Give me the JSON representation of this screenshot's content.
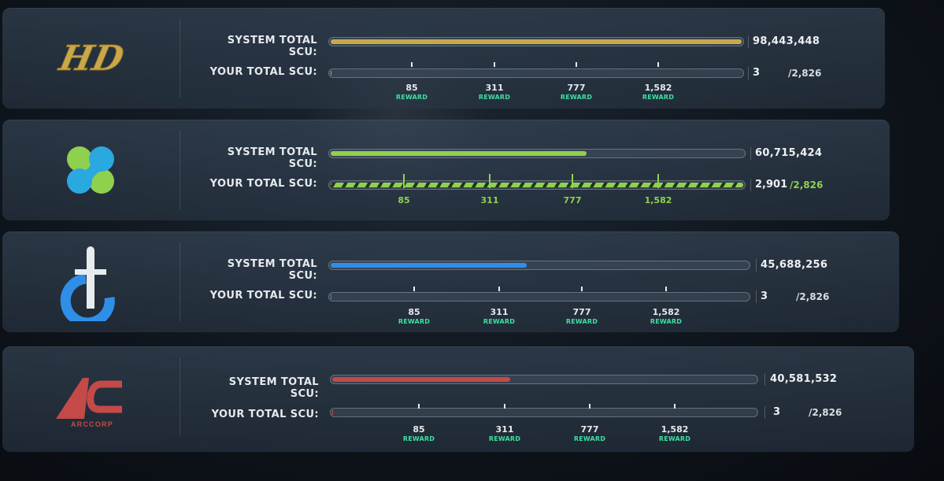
{
  "labels": {
    "system": "SYSTEM TOTAL SCU:",
    "your": "YOUR TOTAL SCU:"
  },
  "milestones": [
    "85",
    "311",
    "777",
    "1,582"
  ],
  "reward_label": "REWARD",
  "corps": [
    {
      "logo": "hurston-dynamics-logo",
      "logo_text": "HD",
      "accent": "#c9a84c",
      "system_total": "98,443,448",
      "system_fill": 1.0,
      "your_total": "3",
      "your_max": "/2,826",
      "your_fill": 0.001,
      "show_reward": true
    },
    {
      "logo": "microtech-logo",
      "accent": "#8fd14f",
      "system_total": "60,715,424",
      "system_fill": 0.62,
      "your_total": "2,901",
      "your_max": "/2,826",
      "your_fill": 1.0,
      "show_reward": false
    },
    {
      "logo": "crusader-industries-logo",
      "accent": "#2f8fe8",
      "system_total": "45,688,256",
      "system_fill": 0.47,
      "your_total": "3",
      "your_max": "/2,826",
      "your_fill": 0.001,
      "show_reward": true
    },
    {
      "logo": "arccorp-logo",
      "logo_text": "ARCCORP",
      "accent": "#c44a48",
      "system_total": "40,581,532",
      "system_fill": 0.42,
      "your_total": "3",
      "your_max": "/2,826",
      "your_fill": 0.001,
      "show_reward": true
    }
  ]
}
